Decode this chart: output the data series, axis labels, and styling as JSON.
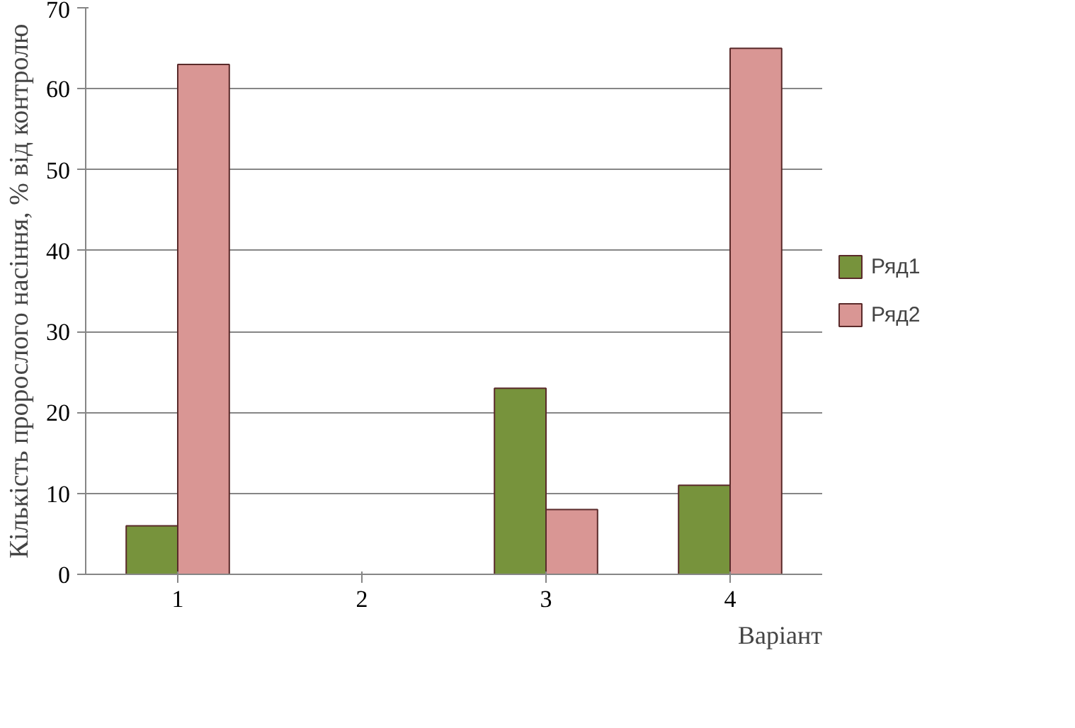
{
  "chart_data": {
    "type": "bar",
    "xlabel": "Варіант",
    "ylabel": "Кількість пророслого насіння, % від контролю",
    "categories": [
      "1",
      "2",
      "3",
      "4"
    ],
    "series": [
      {
        "name": "Ряд1",
        "color": "#77933c",
        "values": [
          6,
          0,
          23,
          11
        ]
      },
      {
        "name": "Ряд2",
        "color": "#d99694",
        "values": [
          63,
          0,
          8,
          65
        ]
      }
    ],
    "ylim": [
      0,
      70
    ],
    "yticks": [
      0,
      10,
      20,
      30,
      40,
      50,
      60,
      70
    ],
    "grid": "y",
    "legend": "right"
  }
}
